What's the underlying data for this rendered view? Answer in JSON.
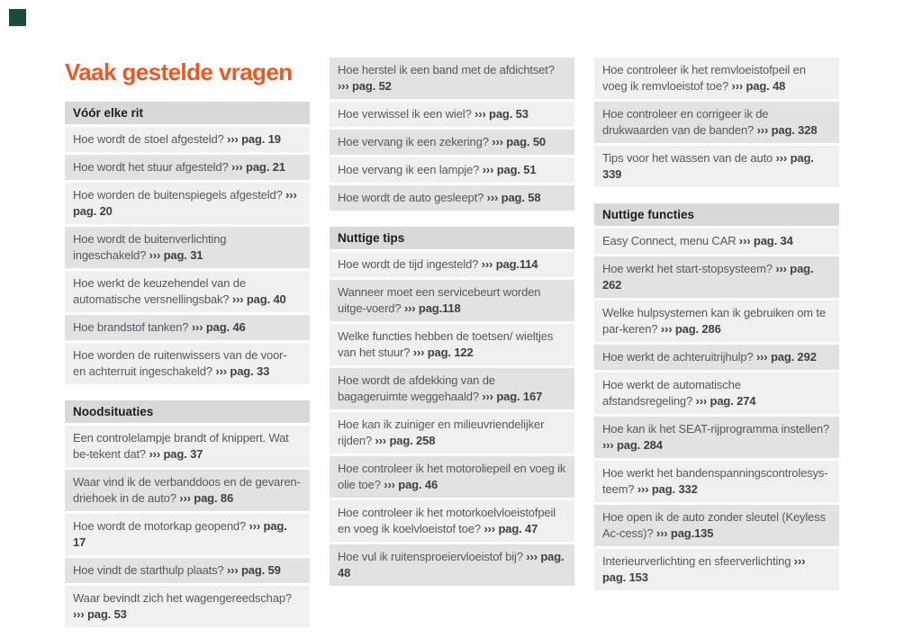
{
  "page": {
    "title": "Vaak gestelde vragen",
    "accent_color": "#e95a24",
    "corner_mark_color": "#1c4a3e",
    "header_bg_color": "#d9d9d9",
    "row_light_bg_color": "#f0f0f0",
    "row_dark_bg_color": "#e2e2e2",
    "question_text_color": "#57585c",
    "page_ref_text_color": "#404145",
    "ref_marker": "›››"
  },
  "columns": [
    {
      "blocks": [
        {
          "type": "header",
          "label": "Vóór elke rit"
        },
        {
          "type": "item",
          "shade": "light",
          "question": "Hoe wordt de stoel afgesteld?",
          "ref": "››› pag. 19"
        },
        {
          "type": "item",
          "shade": "dark",
          "question": "Hoe wordt het stuur afgesteld?",
          "ref": "››› pag. 21"
        },
        {
          "type": "item",
          "shade": "light",
          "question": "Hoe worden de buitenspiegels afgesteld?",
          "ref": "››› pag. 20"
        },
        {
          "type": "item",
          "shade": "dark",
          "question": "Hoe wordt de buitenverlichting ingeschakeld?",
          "ref": "››› pag. 31"
        },
        {
          "type": "item",
          "shade": "light",
          "question": "Hoe werkt de keuzehendel van de automatische versnellingsbak?",
          "ref": "››› pag. 40"
        },
        {
          "type": "item",
          "shade": "dark",
          "question": "Hoe brandstof tanken?",
          "ref": "››› pag. 46"
        },
        {
          "type": "item",
          "shade": "light",
          "question": "Hoe worden de ruitenwissers van de voor- en achterruit ingeschakeld?",
          "ref": "››› pag. 33"
        },
        {
          "type": "header",
          "label": "Noodsituaties"
        },
        {
          "type": "item",
          "shade": "light",
          "question": "Een controlelampje brandt of knippert. Wat be-tekent dat?",
          "ref": "››› pag. 37"
        },
        {
          "type": "item",
          "shade": "dark",
          "question": "Waar vind ik de verbanddoos en de gevaren-driehoek in de auto?",
          "ref": "››› pag. 86"
        },
        {
          "type": "item",
          "shade": "light",
          "question": "Hoe wordt de motorkap geopend?",
          "ref": "››› pag. 17"
        },
        {
          "type": "item",
          "shade": "dark",
          "question": "Hoe vindt de starthulp plaats?",
          "ref": "››› pag. 59"
        },
        {
          "type": "item",
          "shade": "light",
          "question": "Waar bevindt zich het wagengereedschap?",
          "ref": "››› pag. 53"
        }
      ]
    },
    {
      "blocks": [
        {
          "type": "item",
          "shade": "dark",
          "question": "Hoe herstel ik een band met de afdichtset?",
          "ref": "››› pag. 52"
        },
        {
          "type": "item",
          "shade": "light",
          "question": "Hoe verwissel ik een wiel?",
          "ref": "››› pag. 53"
        },
        {
          "type": "item",
          "shade": "dark",
          "question": "Hoe vervang ik een zekering?",
          "ref": "››› pag. 50"
        },
        {
          "type": "item",
          "shade": "light",
          "question": "Hoe vervang ik een lampje?",
          "ref": "››› pag. 51"
        },
        {
          "type": "item",
          "shade": "dark",
          "question": "Hoe wordt de auto gesleept?",
          "ref": "››› pag. 58"
        },
        {
          "type": "header",
          "label": "Nuttige tips"
        },
        {
          "type": "item",
          "shade": "light",
          "question": "Hoe wordt de tijd ingesteld?",
          "ref": "››› pag.114"
        },
        {
          "type": "item",
          "shade": "dark",
          "question": "Wanneer moet een servicebeurt worden uitge-voerd?",
          "ref": "››› pag.118"
        },
        {
          "type": "item",
          "shade": "light",
          "question": "Welke functies hebben de toetsen/ wieltjes van het stuur?",
          "ref": "››› pag. 122"
        },
        {
          "type": "item",
          "shade": "dark",
          "question": "Hoe wordt de afdekking van de bagageruimte weggehaald?",
          "ref": "››› pag. 167"
        },
        {
          "type": "item",
          "shade": "light",
          "question": "Hoe kan ik zuiniger en milieuvriendelijker rijden?",
          "ref": "››› pag. 258"
        },
        {
          "type": "item",
          "shade": "dark",
          "question": "Hoe controleer ik het motoroliepeil en voeg ik olie toe?",
          "ref": "››› pag. 46"
        },
        {
          "type": "item",
          "shade": "light",
          "question": "Hoe controleer ik het motorkoelvloeistofpeil en voeg ik koelvloeistof toe?",
          "ref": "››› pag. 47"
        },
        {
          "type": "item",
          "shade": "dark",
          "question": "Hoe vul ik ruitensproeiervloeistof bij?",
          "ref": "››› pag. 48"
        }
      ]
    },
    {
      "blocks": [
        {
          "type": "item",
          "shade": "light",
          "question": "Hoe controleer ik het remvloeistofpeil en voeg ik remvloeistof toe?",
          "ref": "››› pag. 48"
        },
        {
          "type": "item",
          "shade": "dark",
          "question": "Hoe controleer en corrigeer ik de drukwaarden van de banden?",
          "ref": "››› pag. 328"
        },
        {
          "type": "item",
          "shade": "light",
          "question": "Tips voor het wassen van de auto",
          "ref": "››› pag. 339"
        },
        {
          "type": "header",
          "label": "Nuttige functies"
        },
        {
          "type": "item",
          "shade": "light",
          "question": "Easy Connect, menu CAR",
          "ref": "››› pag. 34"
        },
        {
          "type": "item",
          "shade": "dark",
          "question": "Hoe werkt het start-stopsysteem?",
          "ref": "››› pag. 262"
        },
        {
          "type": "item",
          "shade": "light",
          "question": "Welke hulpsystemen kan ik gebruiken om te par-keren?",
          "ref": "››› pag. 286"
        },
        {
          "type": "item",
          "shade": "dark",
          "question": "Hoe werkt de achteruitrijhulp?",
          "ref": "››› pag. 292"
        },
        {
          "type": "item",
          "shade": "light",
          "question": "Hoe werkt de automatische afstandsregeling?",
          "ref": "››› pag. 274"
        },
        {
          "type": "item",
          "shade": "dark",
          "question": "Hoe kan ik het SEAT-rijprogramma instellen?",
          "ref": "››› pag. 284"
        },
        {
          "type": "item",
          "shade": "light",
          "question": "Hoe werkt het bandenspanningscontrolesys-teem?",
          "ref": "››› pag. 332"
        },
        {
          "type": "item",
          "shade": "dark",
          "question": "Hoe open ik de auto zonder sleutel (Keyless Ac-cess)?",
          "ref": "››› pag.135"
        },
        {
          "type": "item",
          "shade": "light",
          "question": "Interieurverlichting en sfeerverlichting",
          "ref": "››› pag. 153"
        }
      ]
    }
  ]
}
